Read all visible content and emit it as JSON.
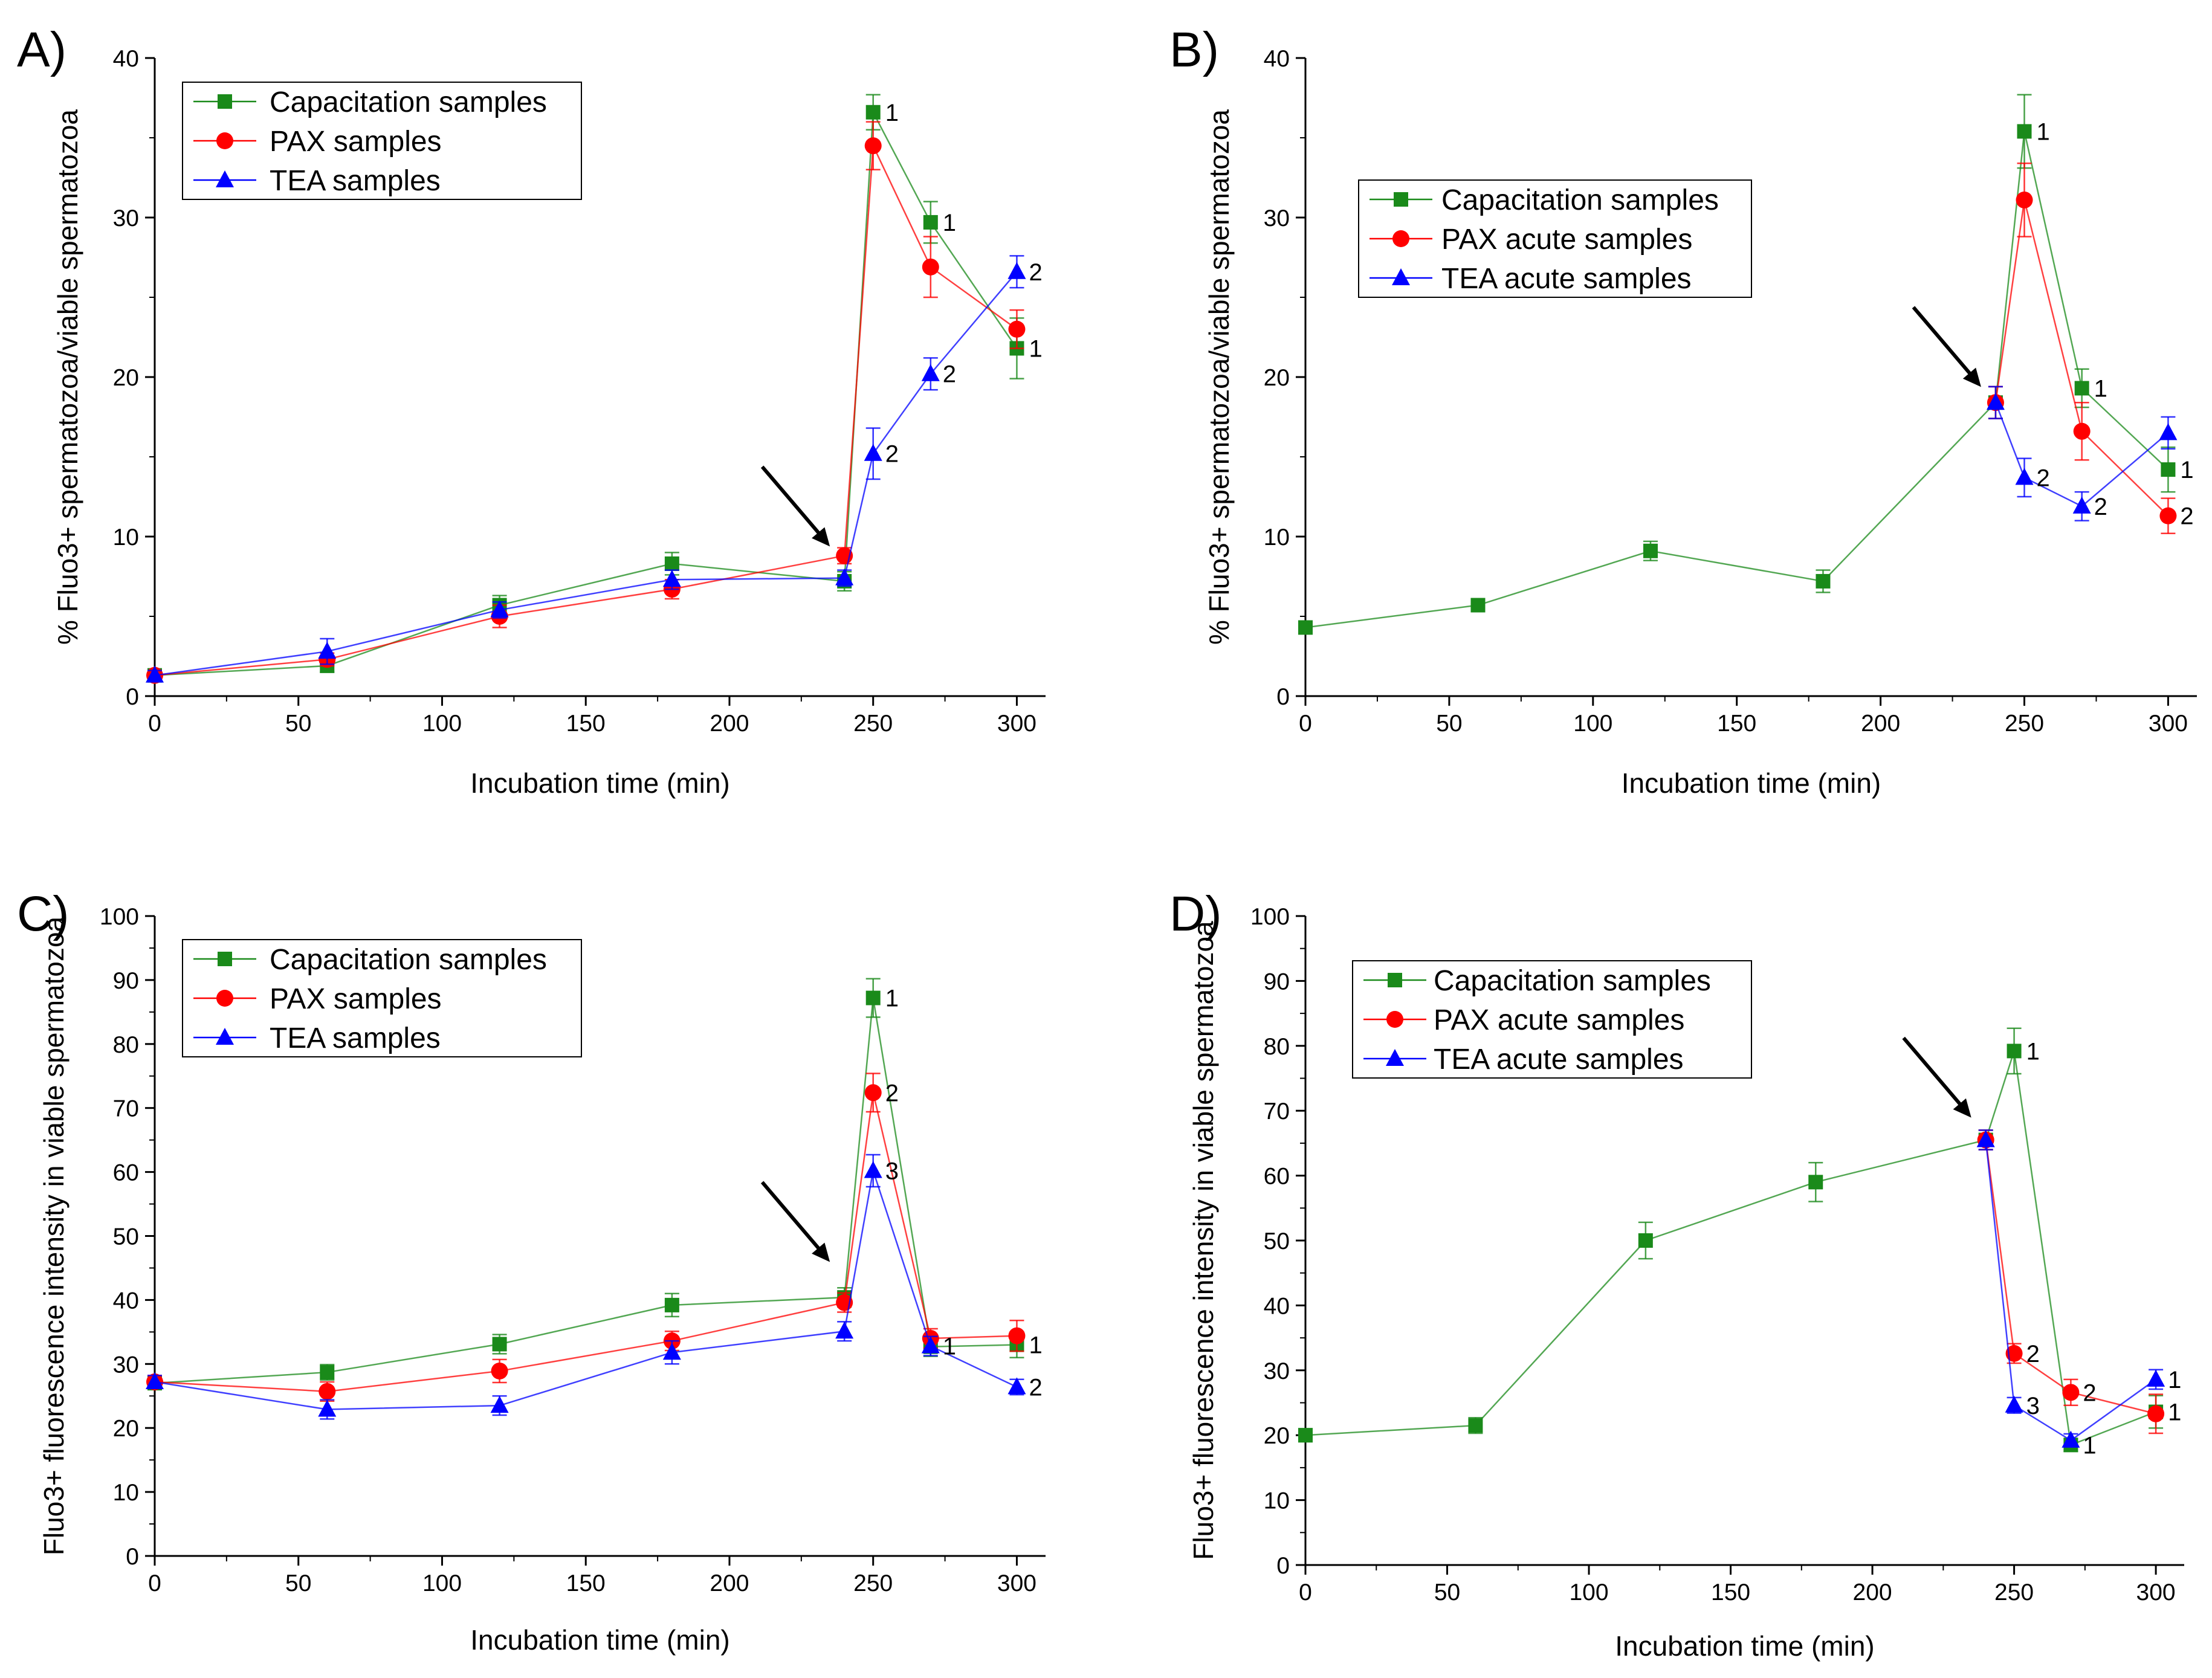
{
  "chart_data": [
    {
      "panel": "A)",
      "type": "line",
      "xlabel": "Incubation time (min)",
      "ylabel": "% Fluo3+ spermatozoa/viable spermatozoa",
      "xlim": [
        0,
        310
      ],
      "ylim": [
        0,
        40
      ],
      "xticks": [
        0,
        50,
        100,
        150,
        200,
        250,
        300
      ],
      "yticks": [
        0,
        10,
        20,
        30,
        40
      ],
      "arrow_at": [
        240,
        9
      ],
      "legend_position": "top-left",
      "series": [
        {
          "name": "Capacitation samples",
          "color": "#1a8a1a",
          "marker": "square",
          "x": [
            0,
            60,
            120,
            180,
            240,
            250,
            270,
            300
          ],
          "y": [
            1.3,
            1.9,
            5.7,
            8.3,
            7.2,
            36.6,
            29.7,
            21.8
          ],
          "err": [
            0.3,
            0.4,
            0.6,
            0.7,
            0.6,
            1.1,
            1.3,
            1.9
          ],
          "labels": [
            "",
            "",
            "",
            "",
            "",
            "1",
            "1",
            "1"
          ]
        },
        {
          "name": "PAX samples",
          "color": "#ff0000",
          "marker": "circle",
          "x": [
            0,
            60,
            120,
            180,
            240,
            250,
            270,
            300
          ],
          "y": [
            1.3,
            2.3,
            5.0,
            6.7,
            8.8,
            34.5,
            26.9,
            23.0
          ],
          "err": [
            0.3,
            0.4,
            0.7,
            0.6,
            0.5,
            1.5,
            1.9,
            1.2
          ],
          "labels": [
            "",
            "",
            "",
            "",
            "",
            "",
            "",
            ""
          ]
        },
        {
          "name": "TEA samples",
          "color": "#0000ff",
          "marker": "triangle",
          "x": [
            0,
            60,
            120,
            180,
            240,
            250,
            270,
            300
          ],
          "y": [
            1.3,
            2.8,
            5.4,
            7.3,
            7.4,
            15.2,
            20.2,
            26.6
          ],
          "err": [
            0.3,
            0.8,
            0.5,
            0.6,
            0.5,
            1.6,
            1.0,
            1.0
          ],
          "labels": [
            "",
            "",
            "",
            "",
            "",
            "2",
            "2",
            "2"
          ]
        }
      ]
    },
    {
      "panel": "B)",
      "type": "line",
      "xlabel": "Incubation time (min)",
      "ylabel": "% Fluo3+ spermatozoa/viable spermatozoa",
      "xlim": [
        0,
        310
      ],
      "ylim": [
        0,
        40
      ],
      "xticks": [
        0,
        50,
        100,
        150,
        200,
        250,
        300
      ],
      "yticks": [
        0,
        10,
        20,
        30,
        40
      ],
      "arrow_at": [
        240,
        19
      ],
      "legend_position": "upper-middle",
      "series": [
        {
          "name": "Capacitation samples",
          "color": "#1a8a1a",
          "marker": "square",
          "x": [
            0,
            60,
            120,
            180,
            240,
            250,
            270,
            300
          ],
          "y": [
            4.3,
            5.7,
            9.1,
            7.2,
            18.4,
            35.4,
            19.3,
            14.2
          ],
          "err": [
            0.4,
            0.4,
            0.6,
            0.7,
            1.0,
            2.3,
            1.2,
            1.4
          ],
          "labels": [
            "",
            "",
            "",
            "",
            "",
            "1",
            "1",
            "1"
          ]
        },
        {
          "name": "PAX acute samples",
          "color": "#ff0000",
          "marker": "circle",
          "x": [
            240,
            250,
            270,
            300
          ],
          "y": [
            18.4,
            31.1,
            16.6,
            11.3
          ],
          "err": [
            1.0,
            2.3,
            1.8,
            1.1
          ],
          "labels": [
            "",
            "",
            "",
            "2"
          ]
        },
        {
          "name": "TEA acute samples",
          "color": "#0000ff",
          "marker": "triangle",
          "x": [
            240,
            250,
            270,
            300
          ],
          "y": [
            18.4,
            13.7,
            11.9,
            16.5
          ],
          "err": [
            1.0,
            1.2,
            0.9,
            1.0
          ],
          "labels": [
            "",
            "2",
            "2",
            ""
          ]
        }
      ]
    },
    {
      "panel": "C)",
      "type": "line",
      "xlabel": "Incubation time (min)",
      "ylabel": "Fluo3+ fluorescence intensity in viable spermatozoa",
      "xlim": [
        0,
        310
      ],
      "ylim": [
        0,
        100
      ],
      "xticks": [
        0,
        50,
        100,
        150,
        200,
        250,
        300
      ],
      "yticks": [
        0,
        10,
        20,
        30,
        40,
        50,
        60,
        70,
        80,
        90,
        100
      ],
      "arrow_at": [
        240,
        45
      ],
      "legend_position": "top-left",
      "series": [
        {
          "name": "Capacitation samples",
          "color": "#1a8a1a",
          "marker": "square",
          "x": [
            0,
            60,
            120,
            180,
            240,
            250,
            270,
            300
          ],
          "y": [
            27.0,
            28.7,
            33.1,
            39.2,
            40.4,
            87.2,
            32.7,
            33.0
          ],
          "err": [
            1.0,
            1.2,
            1.5,
            1.8,
            1.5,
            3.0,
            1.5,
            2.0
          ],
          "labels": [
            "",
            "",
            "",
            "",
            "",
            "1",
            "",
            "1"
          ]
        },
        {
          "name": "PAX samples",
          "color": "#ff0000",
          "marker": "circle",
          "x": [
            0,
            60,
            120,
            180,
            240,
            250,
            270,
            300
          ],
          "y": [
            27.2,
            25.7,
            28.9,
            33.6,
            39.6,
            72.4,
            34.0,
            34.4
          ],
          "err": [
            1.0,
            1.5,
            1.8,
            1.5,
            1.5,
            3.0,
            1.5,
            2.4
          ],
          "labels": [
            "",
            "",
            "",
            "",
            "",
            "2",
            "",
            ""
          ]
        },
        {
          "name": "TEA samples",
          "color": "#0000ff",
          "marker": "triangle",
          "x": [
            0,
            60,
            120,
            180,
            240,
            250,
            270,
            300
          ],
          "y": [
            27.2,
            22.9,
            23.5,
            31.8,
            35.1,
            60.2,
            32.8,
            26.4
          ],
          "err": [
            1.0,
            1.5,
            1.5,
            1.8,
            1.5,
            2.5,
            1.5,
            1.2
          ],
          "labels": [
            "",
            "",
            "",
            "",
            "",
            "3",
            "1",
            "2"
          ]
        }
      ]
    },
    {
      "panel": "D)",
      "type": "line",
      "xlabel": "Incubation time (min)",
      "ylabel": "Fluo3+ fluorescence intensity in viable spermatozoa",
      "xlim": [
        0,
        310
      ],
      "ylim": [
        0,
        100
      ],
      "xticks": [
        0,
        50,
        100,
        150,
        200,
        250,
        300
      ],
      "yticks": [
        0,
        10,
        20,
        30,
        40,
        50,
        60,
        70,
        80,
        90,
        100
      ],
      "arrow_at": [
        240,
        68
      ],
      "legend_position": "upper-middle",
      "series": [
        {
          "name": "Capacitation samples",
          "color": "#1a8a1a",
          "marker": "square",
          "x": [
            0,
            60,
            120,
            180,
            240,
            250,
            270,
            300
          ],
          "y": [
            20.0,
            21.5,
            50.0,
            59.0,
            65.5,
            79.2,
            18.5,
            23.6
          ],
          "err": [
            1.0,
            1.2,
            2.8,
            3.0,
            1.5,
            3.5,
            1.0,
            2.5
          ],
          "labels": [
            "",
            "",
            "",
            "",
            "",
            "1",
            "1",
            "1"
          ]
        },
        {
          "name": "PAX acute samples",
          "color": "#ff0000",
          "marker": "circle",
          "x": [
            240,
            250,
            270,
            300
          ],
          "y": [
            65.5,
            32.6,
            26.6,
            23.3
          ],
          "err": [
            1.5,
            1.5,
            2.0,
            3.0
          ],
          "labels": [
            "",
            "2",
            "2",
            ""
          ]
        },
        {
          "name": "TEA acute samples",
          "color": "#0000ff",
          "marker": "triangle",
          "x": [
            240,
            250,
            270,
            300
          ],
          "y": [
            65.5,
            24.6,
            19.2,
            28.6
          ],
          "err": [
            1.5,
            1.2,
            1.0,
            1.5
          ],
          "labels": [
            "",
            "3",
            "",
            "1"
          ]
        }
      ]
    }
  ]
}
